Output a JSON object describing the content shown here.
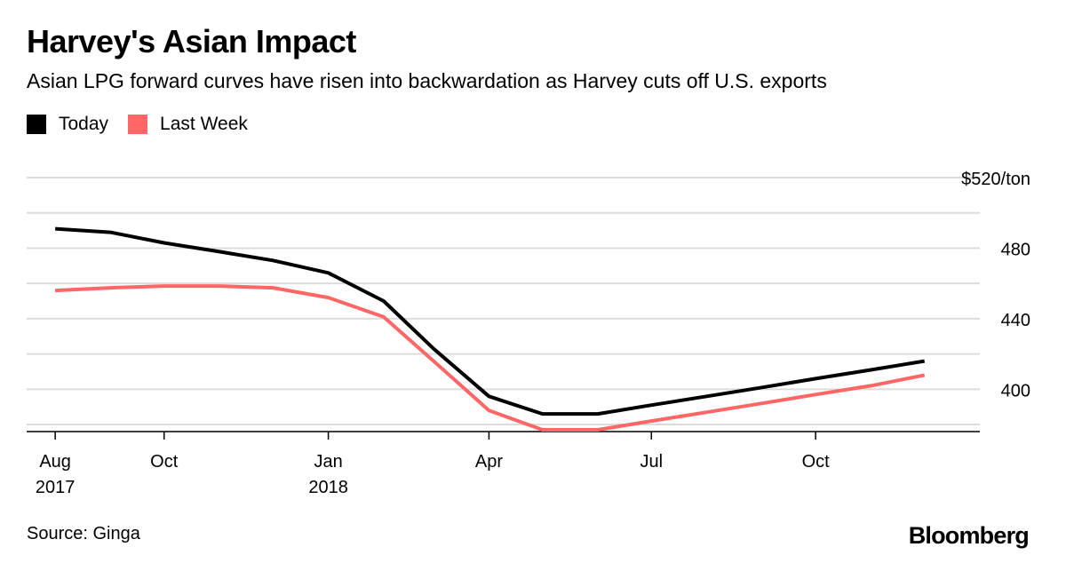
{
  "header": {
    "title": "Harvey's Asian Impact",
    "subtitle": "Asian LPG forward curves have risen into backwardation as Harvey cuts off U.S. exports"
  },
  "legend": [
    {
      "label": "Today",
      "color": "#000000"
    },
    {
      "label": "Last Week",
      "color": "#ff6666"
    }
  ],
  "footer": {
    "source": "Source: Ginga",
    "brand": "Bloomberg"
  },
  "chart_data": {
    "type": "line",
    "y_ticks": [
      {
        "value": 520,
        "label": "$520/ton"
      },
      {
        "value": 480,
        "label": "480"
      },
      {
        "value": 440,
        "label": "440"
      },
      {
        "value": 400,
        "label": "400"
      }
    ],
    "ylim": [
      376,
      520
    ],
    "y_gridlines": [
      500,
      460,
      420,
      380
    ],
    "x_ticks": [
      {
        "date": "2017-08",
        "label": [
          "Aug",
          "2017"
        ]
      },
      {
        "date": "2017-10",
        "label": [
          "Oct"
        ]
      },
      {
        "date": "2018-01",
        "label": [
          "Jan",
          "2018"
        ]
      },
      {
        "date": "2018-04",
        "label": [
          "Apr"
        ]
      },
      {
        "date": "2018-07",
        "label": [
          "Jul"
        ]
      },
      {
        "date": "2018-10",
        "label": [
          "Oct"
        ]
      }
    ],
    "xlim": [
      "2017-07-16",
      "2019-01-01"
    ],
    "grid": true,
    "legend_position": "top-left",
    "series": [
      {
        "name": "Today",
        "color": "#000000",
        "points": [
          {
            "x": "2017-08",
            "y": 491
          },
          {
            "x": "2017-09",
            "y": 489
          },
          {
            "x": "2017-10",
            "y": 483
          },
          {
            "x": "2017-11",
            "y": 478
          },
          {
            "x": "2017-12",
            "y": 473
          },
          {
            "x": "2018-01",
            "y": 466
          },
          {
            "x": "2018-02",
            "y": 450
          },
          {
            "x": "2018-03",
            "y": 423
          },
          {
            "x": "2018-04",
            "y": 396
          },
          {
            "x": "2018-05",
            "y": 386
          },
          {
            "x": "2018-06",
            "y": 386
          },
          {
            "x": "2018-07",
            "y": 391
          },
          {
            "x": "2018-08",
            "y": 396
          },
          {
            "x": "2018-09",
            "y": 401
          },
          {
            "x": "2018-10",
            "y": 406
          },
          {
            "x": "2018-11",
            "y": 411
          },
          {
            "x": "2018-12",
            "y": 416
          }
        ]
      },
      {
        "name": "Last Week",
        "color": "#ff6666",
        "points": [
          {
            "x": "2017-08",
            "y": 456
          },
          {
            "x": "2017-09",
            "y": 457.5
          },
          {
            "x": "2017-10",
            "y": 458.5
          },
          {
            "x": "2017-11",
            "y": 458.5
          },
          {
            "x": "2017-12",
            "y": 457.5
          },
          {
            "x": "2018-01",
            "y": 452
          },
          {
            "x": "2018-02",
            "y": 441
          },
          {
            "x": "2018-03",
            "y": 416
          },
          {
            "x": "2018-04",
            "y": 388
          },
          {
            "x": "2018-05",
            "y": 377
          },
          {
            "x": "2018-06",
            "y": 377
          },
          {
            "x": "2018-07",
            "y": 382
          },
          {
            "x": "2018-08",
            "y": 387
          },
          {
            "x": "2018-09",
            "y": 392
          },
          {
            "x": "2018-10",
            "y": 397
          },
          {
            "x": "2018-11",
            "y": 402
          },
          {
            "x": "2018-12",
            "y": 408
          }
        ]
      }
    ]
  }
}
